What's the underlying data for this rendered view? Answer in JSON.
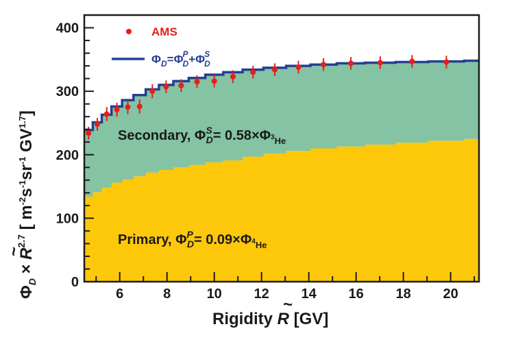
{
  "chart_data": {
    "type": "area",
    "xlabel_main": "Rigidity ",
    "xlabel_symbol": "R",
    "xlabel_unit": " [GV]",
    "ylabel_main": "Φ",
    "ylabel_sub": "D",
    "ylabel_times": " × ",
    "ylabel_R": "R",
    "ylabel_exp": "2.7",
    "ylabel_units": " [ m",
    "ylabel_u1": "-2",
    "ylabel_s": "s",
    "ylabel_u2": "-1",
    "ylabel_sr": "sr",
    "ylabel_u3": "-1",
    "ylabel_gv": " GV",
    "ylabel_u4": "1.7",
    "ylabel_close": "]",
    "xlim": [
      4.5,
      21.2
    ],
    "ylim": [
      0,
      420
    ],
    "x_ticks": [
      "6",
      "8",
      "10",
      "12",
      "14",
      "16",
      "18",
      "20"
    ],
    "y_ticks": [
      "0",
      "100",
      "200",
      "300",
      "400"
    ],
    "grid": false,
    "legend_position": "top-left",
    "bin_edges": [
      4.5,
      4.86,
      5.24,
      5.65,
      6.1,
      6.58,
      7.1,
      7.66,
      8.27,
      8.92,
      9.62,
      10.38,
      11.2,
      12.08,
      13.04,
      14.07,
      15.18,
      16.38,
      17.67,
      19.06,
      20.57,
      21.2
    ],
    "series": [
      {
        "name": "AMS",
        "color": "#e32119",
        "x": [
          4.68,
          5.05,
          5.45,
          5.88,
          6.34,
          6.84,
          7.38,
          7.96,
          8.6,
          9.27,
          10.0,
          10.79,
          11.64,
          12.56,
          13.56,
          14.62,
          15.78,
          17.02,
          18.37,
          19.82
        ],
        "y": [
          234,
          248,
          264,
          271,
          275,
          276,
          300,
          307,
          309,
          315,
          316,
          323,
          330,
          334,
          338,
          342,
          344,
          345,
          347,
          346
        ],
        "yerr": [
          10,
          10,
          11,
          11,
          11,
          11,
          11,
          10,
          10,
          10,
          10,
          10,
          10,
          10,
          10,
          10,
          10,
          10,
          10,
          10
        ]
      },
      {
        "name": "Φ_D = Φ_D^P + Φ_D^S",
        "color": "#233f95",
        "values": [
          239,
          251,
          263,
          276,
          286,
          294,
          303,
          310,
          316,
          321,
          326,
          330,
          334,
          337,
          340,
          342,
          344,
          345,
          346,
          347,
          348
        ]
      },
      {
        "name": "Secondary",
        "color": "#84c3a3",
        "values": [
          105,
          110,
          115,
          120,
          125,
          128,
          131,
          134,
          136,
          137,
          138,
          139,
          137,
          135,
          134,
          132,
          131,
          129,
          127,
          125,
          123
        ]
      },
      {
        "name": "Primary",
        "color": "#fec80a",
        "values": [
          134,
          141,
          148,
          156,
          161,
          166,
          172,
          176,
          180,
          184,
          188,
          191,
          197,
          202,
          206,
          210,
          213,
          216,
          219,
          222,
          225
        ]
      }
    ],
    "legend": {
      "ams_label": "AMS",
      "total_main": "Φ",
      "total_sub1": "D",
      "total_eq": "=Φ",
      "total_sup2": "P",
      "total_sub2": "D",
      "total_plus": "+Φ",
      "total_sup3": "S",
      "total_sub3": "D"
    },
    "annotations": {
      "secondary_word": "Secondary,  Φ",
      "secondary_sup": "S",
      "secondary_sub": "D",
      "secondary_value": "= 0.58×Φ",
      "secondary_iso_sup": "3",
      "secondary_iso_sub": "He",
      "primary_word": "Primary,  Φ",
      "primary_sup": "P",
      "primary_sub": "D",
      "primary_value": "= 0.09×Φ",
      "primary_iso_sup": "4",
      "primary_iso_sub": "He"
    }
  }
}
